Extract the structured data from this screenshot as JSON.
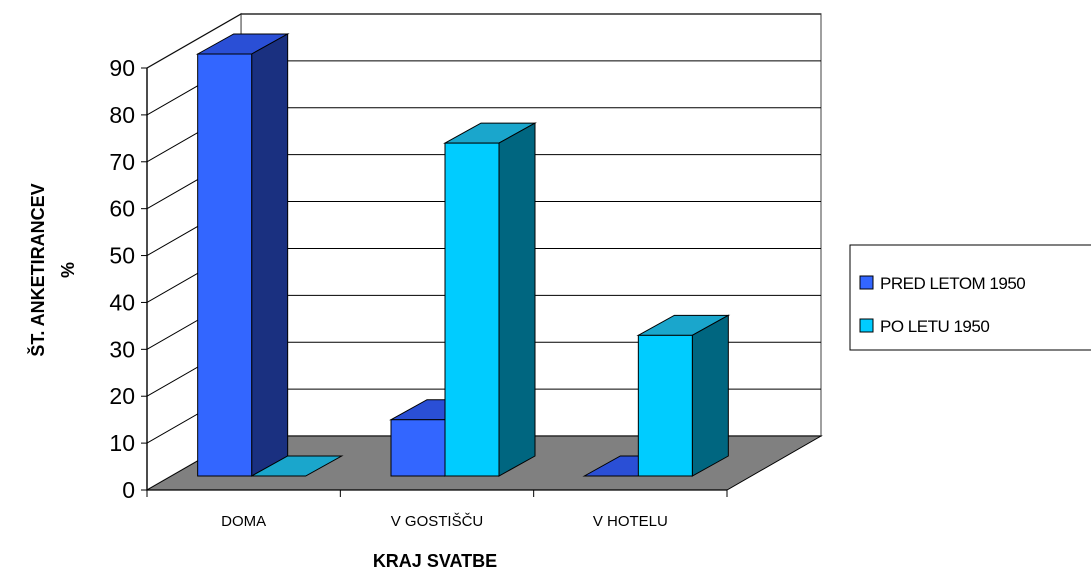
{
  "chart_data": {
    "type": "bar",
    "title": "",
    "categories": [
      "DOMA",
      "V GOSTIŠČU",
      "V HOTELU"
    ],
    "series": [
      {
        "name": "PRED LETOM 1950",
        "values": [
          90,
          12,
          0
        ],
        "color": "#3366ff",
        "side_color": "#1a3080",
        "top_color": "#2a4fd6"
      },
      {
        "name": "PO LETU 1950",
        "values": [
          0,
          71,
          30
        ],
        "color": "#00ccff",
        "side_color": "#006680",
        "top_color": "#1aa6cc"
      }
    ],
    "xlabel": "KRAJ SVATBE",
    "ylabel_line1": "ŠT. ANKETIRANCEV",
    "ylabel_line2": "%",
    "ylim": [
      0,
      90
    ],
    "yticks": [
      0,
      10,
      20,
      30,
      40,
      50,
      60,
      70,
      80,
      90
    ],
    "grid": true,
    "legend_position": "right",
    "floor_color": "#808080"
  }
}
